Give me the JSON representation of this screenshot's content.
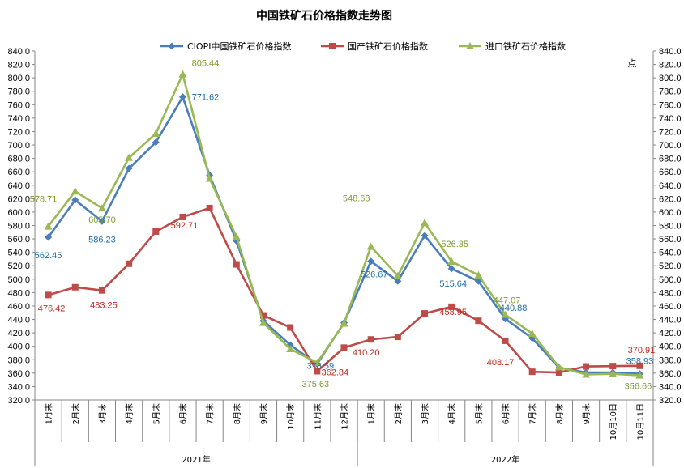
{
  "chart_data": {
    "type": "line",
    "title": "中国铁矿石价格指数走势图",
    "y2label": "点",
    "ylim": [
      320,
      840
    ],
    "ystep": 20,
    "y2lim": [
      320,
      840
    ],
    "y2step": 20,
    "grid": false,
    "legend_position": "top",
    "categories": [
      "1月末",
      "2月末",
      "3月末",
      "4月末",
      "5月末",
      "6月末",
      "7月末",
      "8月末",
      "9月末",
      "10月末",
      "11月末",
      "12月末",
      "1月末",
      "2月末",
      "3月末",
      "4月末",
      "5月末",
      "6月末",
      "7月末",
      "8月末",
      "9月末",
      "10月10日",
      "10月11日"
    ],
    "groups": [
      {
        "label": "2021年",
        "count": 12
      },
      {
        "label": "2022年",
        "count": 11
      }
    ],
    "series": [
      {
        "name": "CIOPI中国铁矿石价格指数",
        "color": "#4a7ebb",
        "marker": "diamond",
        "values": [
          562.45,
          618,
          586.23,
          665,
          704,
          771.62,
          655,
          557,
          438,
          402,
          373.59,
          435,
          526.67,
          497,
          565,
          515.64,
          497,
          440.88,
          412,
          368,
          361,
          361,
          358.93
        ],
        "labels": [
          {
            "i": 0,
            "text": "562.45"
          },
          {
            "i": 2,
            "text": "586.23"
          },
          {
            "i": 5,
            "text": "771.62"
          },
          {
            "i": 10,
            "text": "373.59"
          },
          {
            "i": 12,
            "text": "526.67"
          },
          {
            "i": 15,
            "text": "515.64"
          },
          {
            "i": 17,
            "text": "440.88"
          },
          {
            "i": 22,
            "text": "358.93"
          }
        ]
      },
      {
        "name": "国产铁矿石价格指数",
        "color": "#be4b48",
        "marker": "square",
        "values": [
          476.42,
          488,
          483.25,
          523,
          571,
          592.71,
          606,
          522,
          446,
          428,
          362.84,
          398,
          410.2,
          414,
          449,
          458.95,
          438,
          408.17,
          362,
          361,
          370,
          370.5,
          370.91
        ],
        "labels": [
          {
            "i": 0,
            "text": "476.42"
          },
          {
            "i": 2,
            "text": "483.25"
          },
          {
            "i": 5,
            "text": "592.71"
          },
          {
            "i": 10,
            "text": "362.84"
          },
          {
            "i": 12,
            "text": "410.20"
          },
          {
            "i": 15,
            "text": "458.95"
          },
          {
            "i": 17,
            "text": "408.17"
          },
          {
            "i": 22,
            "text": "370.91"
          }
        ]
      },
      {
        "name": "进口铁矿石价格指数",
        "color": "#98b954",
        "marker": "triangle",
        "values": [
          578.71,
          631,
          605.7,
          681,
          717,
          805.44,
          650,
          563,
          435,
          396,
          375.63,
          434,
          548.68,
          505,
          584,
          526.35,
          506,
          447.07,
          419,
          369,
          358,
          359,
          356.66
        ],
        "labels": [
          {
            "i": 0,
            "text": "578.71"
          },
          {
            "i": 2,
            "text": "605.70"
          },
          {
            "i": 5,
            "text": "805.44"
          },
          {
            "i": 10,
            "text": "375.63"
          },
          {
            "i": 12,
            "text": "548.68"
          },
          {
            "i": 15,
            "text": "526.35"
          },
          {
            "i": 17,
            "text": "447.07"
          },
          {
            "i": 22,
            "text": "356.66"
          }
        ]
      }
    ]
  }
}
